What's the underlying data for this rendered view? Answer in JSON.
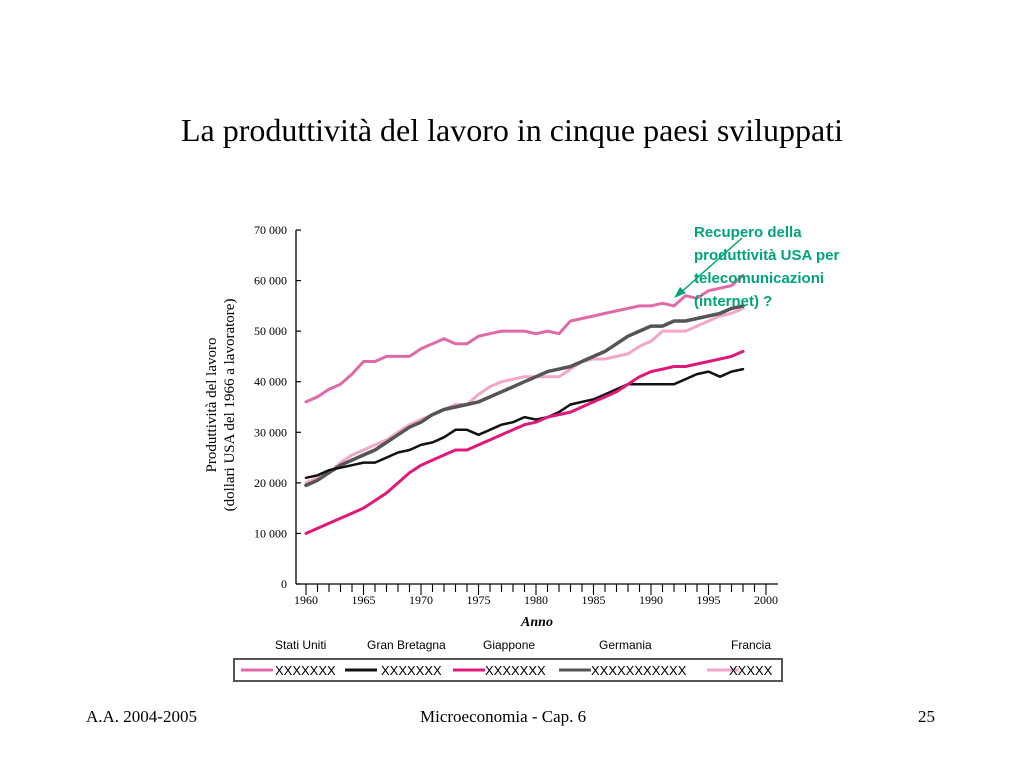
{
  "slide": {
    "title": "La produttività del lavoro in cinque paesi sviluppati",
    "footer_left": "A.A. 2004-2005",
    "footer_center": "Microeconomia - Cap. 6",
    "footer_right": "25"
  },
  "annotation": {
    "lines": [
      "Recupero della",
      "produttività USA per",
      "telecomunicazioni",
      "(internet) ?"
    ],
    "color": "#00A37A"
  },
  "chart_data": {
    "type": "line",
    "xlabel": "Anno",
    "ylabel_line1": "Produttività del lavoro",
    "ylabel_line2": "(dollari USA del 1966 a lavoratore)",
    "xlim": [
      1960,
      2000
    ],
    "ylim": [
      0,
      70000
    ],
    "x_ticks": [
      1960,
      1965,
      1970,
      1975,
      1980,
      1985,
      1990,
      1995,
      2000
    ],
    "y_ticks": [
      0,
      10000,
      20000,
      30000,
      40000,
      50000,
      60000,
      70000
    ],
    "y_tick_labels": [
      "0",
      "10 000",
      "20 000",
      "30 000",
      "40 000",
      "50 000",
      "60 000",
      "70 000"
    ],
    "x_tick_labels": [
      "1960",
      "1965",
      "1970",
      "1975",
      "1980",
      "1985",
      "1990",
      "1995",
      "2000"
    ],
    "legend_names": [
      "Stati Uniti",
      "Gran Bretagna",
      "Giappone",
      "Germania",
      "Francia"
    ],
    "legend_placeholders": [
      "XXXXXXX",
      "XXXXXXX",
      "XXXXXXX",
      "XXXXXXXXXXX",
      "XXXXX"
    ],
    "grid": false,
    "series": [
      {
        "name": "Stati Uniti",
        "color": "#E06AA8",
        "width": 3,
        "x": [
          1960,
          1961,
          1962,
          1963,
          1964,
          1965,
          1966,
          1967,
          1968,
          1969,
          1970,
          1971,
          1972,
          1973,
          1974,
          1975,
          1976,
          1977,
          1978,
          1979,
          1980,
          1981,
          1982,
          1983,
          1984,
          1985,
          1986,
          1987,
          1988,
          1989,
          1990,
          1991,
          1992,
          1993,
          1994,
          1995,
          1996,
          1997,
          1998
        ],
        "y": [
          36000,
          37000,
          38500,
          39500,
          41500,
          44000,
          44000,
          45000,
          45000,
          45000,
          46500,
          47500,
          48500,
          47500,
          47500,
          49000,
          49500,
          50000,
          50000,
          50000,
          49500,
          50000,
          49500,
          52000,
          52500,
          53000,
          53500,
          54000,
          54500,
          55000,
          55000,
          55500,
          55000,
          57000,
          56500,
          58000,
          58500,
          59000,
          61000
        ]
      },
      {
        "name": "Gran Bretagna",
        "color": "#111111",
        "width": 2.5,
        "x": [
          1960,
          1961,
          1962,
          1963,
          1964,
          1965,
          1966,
          1967,
          1968,
          1969,
          1970,
          1971,
          1972,
          1973,
          1974,
          1975,
          1976,
          1977,
          1978,
          1979,
          1980,
          1981,
          1982,
          1983,
          1984,
          1985,
          1986,
          1987,
          1988,
          1989,
          1990,
          1991,
          1992,
          1993,
          1994,
          1995,
          1996,
          1997,
          1998
        ],
        "y": [
          21000,
          21500,
          22500,
          23000,
          23500,
          24000,
          24000,
          25000,
          26000,
          26500,
          27500,
          28000,
          29000,
          30500,
          30500,
          29500,
          30500,
          31500,
          32000,
          33000,
          32500,
          33000,
          34000,
          35500,
          36000,
          36500,
          37500,
          38500,
          39500,
          39500,
          39500,
          39500,
          39500,
          40500,
          41500,
          42000,
          41000,
          42000,
          42500
        ]
      },
      {
        "name": "Giappone",
        "color": "#E0187A",
        "width": 3,
        "x": [
          1960,
          1961,
          1962,
          1963,
          1964,
          1965,
          1966,
          1967,
          1968,
          1969,
          1970,
          1971,
          1972,
          1973,
          1974,
          1975,
          1976,
          1977,
          1978,
          1979,
          1980,
          1981,
          1982,
          1983,
          1984,
          1985,
          1986,
          1987,
          1988,
          1989,
          1990,
          1991,
          1992,
          1993,
          1994,
          1995,
          1996,
          1997,
          1998
        ],
        "y": [
          10000,
          11000,
          12000,
          13000,
          14000,
          15000,
          16500,
          18000,
          20000,
          22000,
          23500,
          24500,
          25500,
          26500,
          26500,
          27500,
          28500,
          29500,
          30500,
          31500,
          32000,
          33000,
          33500,
          34000,
          35000,
          36000,
          37000,
          38000,
          39500,
          41000,
          42000,
          42500,
          43000,
          43000,
          43500,
          44000,
          44500,
          45000,
          46000
        ]
      },
      {
        "name": "Germania",
        "color": "#555555",
        "width": 3.5,
        "x": [
          1960,
          1961,
          1962,
          1963,
          1964,
          1965,
          1966,
          1967,
          1968,
          1969,
          1970,
          1971,
          1972,
          1973,
          1974,
          1975,
          1976,
          1977,
          1978,
          1979,
          1980,
          1981,
          1982,
          1983,
          1984,
          1985,
          1986,
          1987,
          1988,
          1989,
          1990,
          1991,
          1992,
          1993,
          1994,
          1995,
          1996,
          1997,
          1998
        ],
        "y": [
          19500,
          20500,
          22000,
          23500,
          24500,
          25500,
          26500,
          28000,
          29500,
          31000,
          32000,
          33500,
          34500,
          35000,
          35500,
          36000,
          37000,
          38000,
          39000,
          40000,
          41000,
          42000,
          42500,
          43000,
          44000,
          45000,
          46000,
          47500,
          49000,
          50000,
          51000,
          51000,
          52000,
          52000,
          52500,
          53000,
          53500,
          54500,
          55000
        ]
      },
      {
        "name": "Francia",
        "color": "#F2A6C8",
        "width": 3,
        "x": [
          1960,
          1961,
          1962,
          1963,
          1964,
          1965,
          1966,
          1967,
          1968,
          1969,
          1970,
          1971,
          1972,
          1973,
          1974,
          1975,
          1976,
          1977,
          1978,
          1979,
          1980,
          1981,
          1982,
          1983,
          1984,
          1985,
          1986,
          1987,
          1988,
          1989,
          1990,
          1991,
          1992,
          1993,
          1994,
          1995,
          1996,
          1997,
          1998
        ],
        "y": [
          20000,
          21000,
          22000,
          24000,
          25500,
          26500,
          27500,
          28500,
          30000,
          31500,
          32500,
          33500,
          34500,
          35500,
          35500,
          37500,
          39000,
          40000,
          40500,
          41000,
          41000,
          41000,
          41000,
          42500,
          44000,
          44500,
          44500,
          45000,
          45500,
          47000,
          48000,
          50000,
          50000,
          50000,
          51000,
          52000,
          53000,
          53500,
          54500
        ]
      }
    ]
  }
}
